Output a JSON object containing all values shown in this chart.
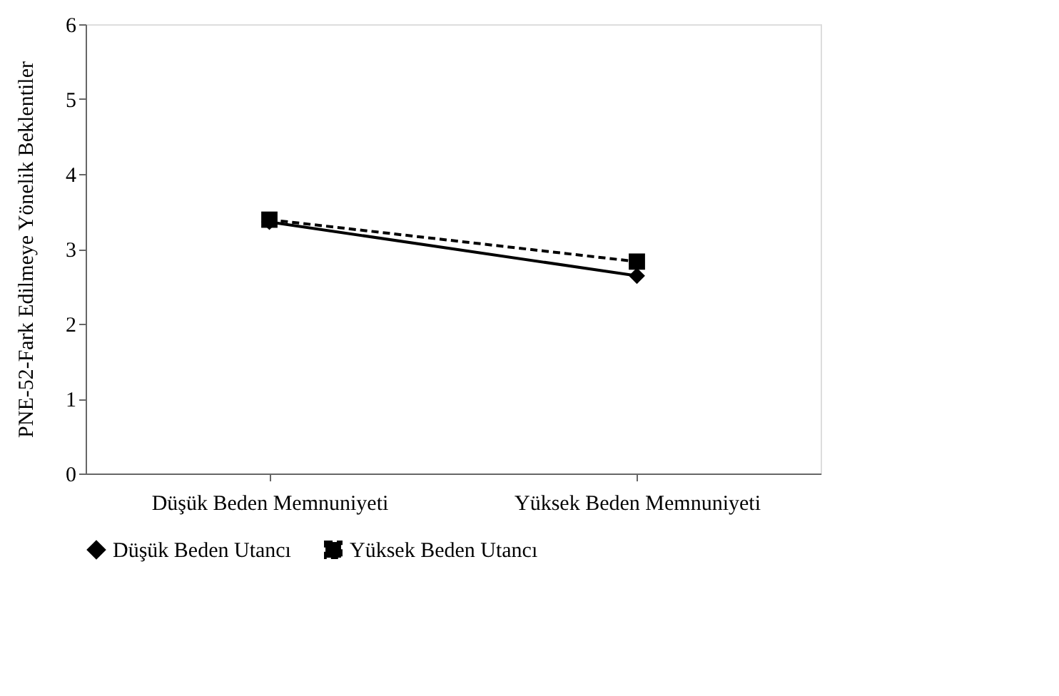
{
  "chart_data": {
    "type": "line",
    "ylabel": "PNE-52-Fark Edilmeye Yönelik Beklentiler",
    "categories": [
      "Düşük Beden Memnuniyeti",
      "Yüksek Beden Memnuniyeti"
    ],
    "series": [
      {
        "name": "Düşük Beden Utancı",
        "color": "#000000",
        "values": [
          3.36,
          2.64
        ],
        "marker": "diamond",
        "line_style": "solid"
      },
      {
        "name": "Yüksek Beden Utancı",
        "color": "#000000",
        "values": [
          3.39,
          2.83
        ],
        "marker": "square",
        "line_style": "dashed"
      }
    ],
    "ylim": [
      0,
      6
    ],
    "yticks": [
      0,
      1,
      2,
      3,
      4,
      5,
      6
    ],
    "grid": false,
    "legend": "bottom"
  }
}
